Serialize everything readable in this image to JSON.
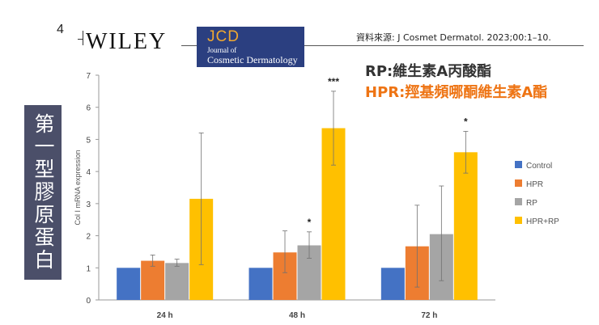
{
  "header": {
    "page_number": "4",
    "publisher": "WILEY",
    "journal_abbr": "JCD",
    "journal_line1": "Journal of",
    "journal_line2": "Cosmetic Dermatology",
    "source_text": "資料來源: J Cosmet Dermatol. 2023;00:1–10."
  },
  "captions": {
    "rp": "RP:維生素A丙酸酯",
    "hpr": "HPR:羥基頻哪酮維生素A酯"
  },
  "side_label": "第一型膠原蛋白",
  "chart_data": {
    "type": "bar",
    "ylabel": "Col I mRNA expression",
    "ylim": [
      0,
      7
    ],
    "yticks": [
      0,
      1,
      2,
      3,
      4,
      5,
      6,
      7
    ],
    "categories": [
      "24 h",
      "48 h",
      "72 h"
    ],
    "legend_position": "right",
    "grid": false,
    "series": [
      {
        "name": "Control",
        "color": "#4472c4",
        "values": [
          1.0,
          1.0,
          1.0
        ],
        "err_low": [
          1.0,
          1.0,
          1.0
        ],
        "err_high": [
          1.0,
          1.0,
          1.0
        ]
      },
      {
        "name": "HPR",
        "color": "#ed7d31",
        "values": [
          1.22,
          1.48,
          1.67
        ],
        "err_low": [
          1.05,
          0.85,
          0.4
        ],
        "err_high": [
          1.4,
          2.15,
          2.95
        ]
      },
      {
        "name": "RP",
        "color": "#a5a5a5",
        "values": [
          1.15,
          1.7,
          2.05
        ],
        "err_low": [
          1.05,
          1.3,
          0.6
        ],
        "err_high": [
          1.27,
          2.12,
          3.55
        ]
      },
      {
        "name": "HPR+RP",
        "color": "#ffc000",
        "values": [
          3.15,
          5.35,
          4.6
        ],
        "err_low": [
          1.1,
          4.2,
          3.95
        ],
        "err_high": [
          5.2,
          6.5,
          5.25
        ]
      }
    ],
    "annotations": [
      {
        "category": "48 h",
        "series": "RP",
        "text": "*"
      },
      {
        "category": "48 h",
        "series": "HPR+RP",
        "text": "***"
      },
      {
        "category": "72 h",
        "series": "HPR+RP",
        "text": "*"
      }
    ]
  }
}
